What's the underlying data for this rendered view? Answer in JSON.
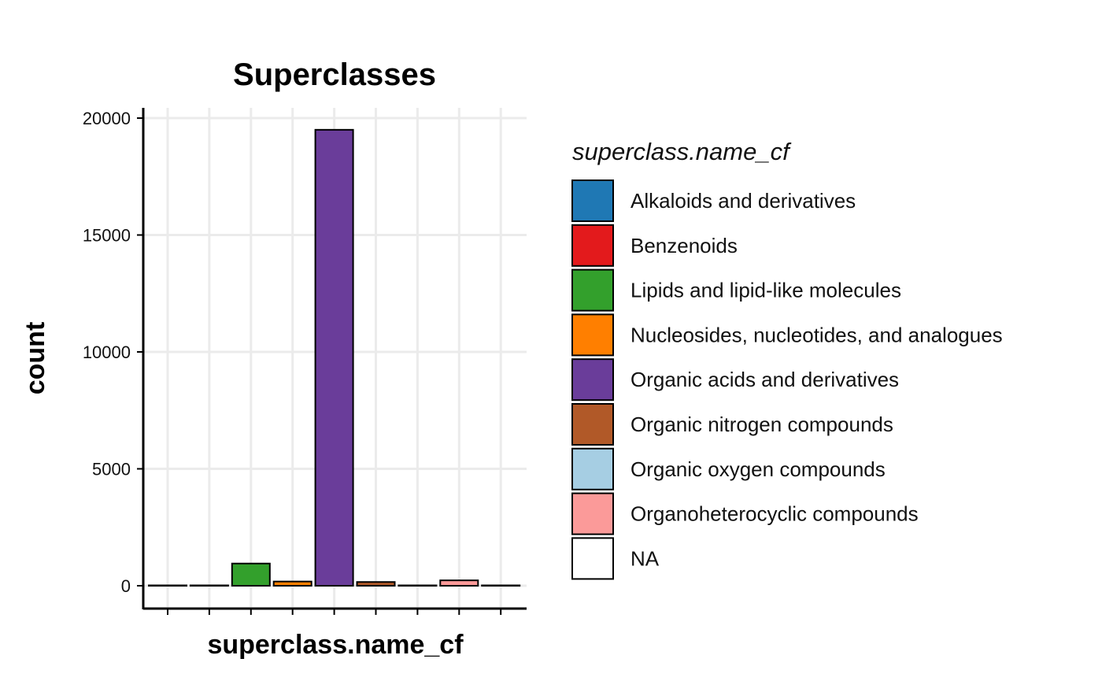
{
  "chart_data": {
    "type": "bar",
    "title": "Superclasses",
    "xlabel": "superclass.name_cf",
    "ylabel": "count",
    "ylim": [
      0,
      20000
    ],
    "yticks": [
      "0",
      "5000",
      "10000",
      "15000",
      "20000"
    ],
    "grid": true,
    "legend_title": "superclass.name_cf",
    "legend_position": "right",
    "categories": [
      "Alkaloids and derivatives",
      "Benzenoids",
      "Lipids and lipid-like molecules",
      "Nucleosides, nucleotides, and analogues",
      "Organic acids and derivatives",
      "Organic nitrogen compounds",
      "Organic oxygen compounds",
      "Organoheterocyclic compounds",
      "NA"
    ],
    "values": [
      5,
      10,
      950,
      180,
      19500,
      160,
      15,
      230,
      10
    ],
    "colors": [
      "#1f78b4",
      "#e31a1c",
      "#33a02c",
      "#ff7f00",
      "#6a3d9a",
      "#b15928",
      "#a6cee3",
      "#fb9a99",
      "#ffffff"
    ]
  }
}
